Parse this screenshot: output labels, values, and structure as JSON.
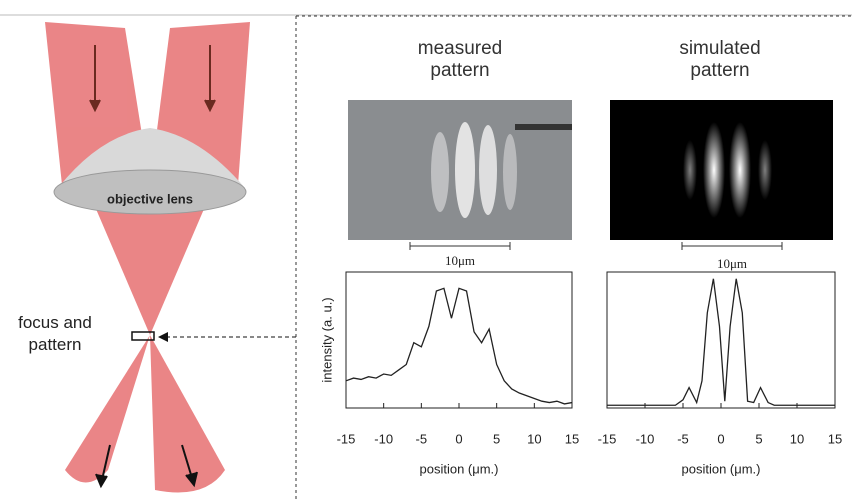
{
  "diagram": {
    "lens_label": "objective lens",
    "focus_label": "focus and pattern"
  },
  "panels": [
    {
      "title": "measured pattern",
      "scale_bar": "10μm"
    },
    {
      "title": "simulated pattern",
      "scale_bar": "10μm"
    }
  ],
  "chart_data": [
    {
      "type": "line",
      "xlabel": "position (μm.)",
      "ylabel": "intensity (a. u.)",
      "x": [
        -15,
        -14,
        -13,
        -12,
        -11,
        -10,
        -9,
        -8,
        -7,
        -6,
        -5,
        -4,
        -3,
        -2,
        -1,
        0,
        1,
        2,
        3,
        4,
        5,
        6,
        7,
        8,
        9,
        10,
        11,
        12,
        13,
        14,
        15
      ],
      "values": [
        0.2,
        0.22,
        0.21,
        0.23,
        0.22,
        0.25,
        0.24,
        0.28,
        0.32,
        0.48,
        0.45,
        0.6,
        0.86,
        0.88,
        0.66,
        0.88,
        0.86,
        0.56,
        0.48,
        0.58,
        0.32,
        0.2,
        0.14,
        0.11,
        0.09,
        0.07,
        0.05,
        0.04,
        0.05,
        0.03,
        0.04
      ],
      "color": "#222222",
      "xlim": [
        -15,
        15
      ],
      "xticks": [
        -15,
        -10,
        -5,
        0,
        5,
        10,
        15
      ],
      "ylim": [
        0,
        1
      ]
    },
    {
      "type": "line",
      "xlabel": "position (μm.)",
      "x": [
        -15,
        -6,
        -5,
        -4.2,
        -3.2,
        -2.5,
        -1.8,
        -1,
        -0.2,
        0.5,
        1.2,
        2,
        2.8,
        3.5,
        4.3,
        5.2,
        6.2,
        7,
        15
      ],
      "values": [
        0.02,
        0.02,
        0.06,
        0.15,
        0.04,
        0.2,
        0.7,
        0.95,
        0.6,
        0.05,
        0.6,
        0.95,
        0.7,
        0.05,
        0.04,
        0.15,
        0.04,
        0.02,
        0.02
      ],
      "color": "#222222",
      "xlim": [
        -15,
        15
      ],
      "xticks": [
        -15,
        -10,
        -5,
        0,
        5,
        10,
        15
      ],
      "ylim": [
        0,
        1
      ]
    }
  ]
}
